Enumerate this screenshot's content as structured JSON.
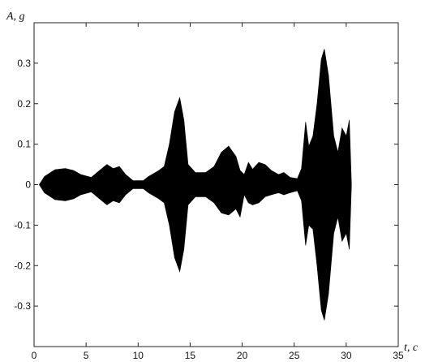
{
  "chart_data": {
    "type": "area",
    "xlabel": "t, c",
    "ylabel": "A, g",
    "xlim": [
      0,
      35
    ],
    "ylim": [
      -0.4,
      0.4
    ],
    "x_ticks": [
      0,
      5,
      10,
      15,
      20,
      25,
      30,
      35
    ],
    "y_ticks": [
      -0.3,
      -0.2,
      -0.1,
      0,
      0.1,
      0.2,
      0.3
    ],
    "y_tick_labels": [
      "-0.3",
      "-0.2",
      "-0.1",
      "0",
      "0.1",
      "0.2",
      "0.3"
    ],
    "grid": false,
    "series": [
      {
        "envelope_upper": [
          [
            0.5,
            0
          ],
          [
            1.0,
            0.02
          ],
          [
            2.0,
            0.037
          ],
          [
            3.0,
            0.04
          ],
          [
            3.8,
            0.035
          ],
          [
            4.5,
            0.025
          ],
          [
            5.5,
            0.018
          ],
          [
            6.3,
            0.035
          ],
          [
            7.0,
            0.05
          ],
          [
            7.6,
            0.04
          ],
          [
            8.2,
            0.045
          ],
          [
            8.8,
            0.025
          ],
          [
            9.5,
            0.01
          ],
          [
            10.5,
            0.01
          ],
          [
            11.0,
            0.02
          ],
          [
            12.0,
            0.035
          ],
          [
            12.5,
            0.045
          ],
          [
            13.0,
            0.1
          ],
          [
            13.5,
            0.18
          ],
          [
            14.0,
            0.215
          ],
          [
            14.4,
            0.16
          ],
          [
            14.8,
            0.05
          ],
          [
            15.5,
            0.03
          ],
          [
            16.5,
            0.03
          ],
          [
            17.3,
            0.045
          ],
          [
            18.0,
            0.08
          ],
          [
            18.7,
            0.095
          ],
          [
            19.4,
            0.07
          ],
          [
            19.8,
            0.035
          ],
          [
            20.2,
            0.025
          ],
          [
            20.6,
            0.055
          ],
          [
            21.0,
            0.038
          ],
          [
            21.6,
            0.055
          ],
          [
            22.2,
            0.05
          ],
          [
            22.8,
            0.035
          ],
          [
            23.5,
            0.025
          ],
          [
            24.0,
            0.03
          ],
          [
            24.6,
            0.018
          ],
          [
            25.3,
            0.015
          ],
          [
            25.7,
            0.04
          ],
          [
            26.1,
            0.155
          ],
          [
            26.4,
            0.095
          ],
          [
            26.8,
            0.12
          ],
          [
            27.2,
            0.2
          ],
          [
            27.6,
            0.31
          ],
          [
            27.9,
            0.335
          ],
          [
            28.3,
            0.27
          ],
          [
            28.8,
            0.12
          ],
          [
            29.2,
            0.08
          ],
          [
            29.6,
            0.14
          ],
          [
            30.0,
            0.12
          ],
          [
            30.3,
            0.16
          ],
          [
            30.5,
            0
          ]
        ],
        "envelope_lower": [
          [
            0.5,
            0
          ],
          [
            1.0,
            -0.02
          ],
          [
            2.0,
            -0.037
          ],
          [
            3.0,
            -0.04
          ],
          [
            3.8,
            -0.035
          ],
          [
            4.5,
            -0.025
          ],
          [
            5.5,
            -0.018
          ],
          [
            6.3,
            -0.035
          ],
          [
            7.0,
            -0.05
          ],
          [
            7.6,
            -0.04
          ],
          [
            8.2,
            -0.045
          ],
          [
            8.8,
            -0.025
          ],
          [
            9.5,
            -0.01
          ],
          [
            10.5,
            -0.01
          ],
          [
            11.0,
            -0.02
          ],
          [
            12.0,
            -0.035
          ],
          [
            12.5,
            -0.045
          ],
          [
            13.0,
            -0.1
          ],
          [
            13.5,
            -0.18
          ],
          [
            14.0,
            -0.215
          ],
          [
            14.4,
            -0.16
          ],
          [
            14.8,
            -0.05
          ],
          [
            15.5,
            -0.03
          ],
          [
            16.5,
            -0.03
          ],
          [
            17.3,
            -0.045
          ],
          [
            18.0,
            -0.07
          ],
          [
            18.7,
            -0.075
          ],
          [
            19.4,
            -0.06
          ],
          [
            19.8,
            -0.08
          ],
          [
            20.2,
            -0.025
          ],
          [
            20.6,
            -0.045
          ],
          [
            21.0,
            -0.05
          ],
          [
            21.6,
            -0.045
          ],
          [
            22.2,
            -0.03
          ],
          [
            22.8,
            -0.025
          ],
          [
            23.5,
            -0.02
          ],
          [
            24.0,
            -0.025
          ],
          [
            24.6,
            -0.02
          ],
          [
            25.3,
            -0.015
          ],
          [
            25.7,
            -0.04
          ],
          [
            26.1,
            -0.15
          ],
          [
            26.4,
            -0.1
          ],
          [
            26.8,
            -0.11
          ],
          [
            27.2,
            -0.2
          ],
          [
            27.6,
            -0.31
          ],
          [
            27.9,
            -0.335
          ],
          [
            28.3,
            -0.27
          ],
          [
            28.8,
            -0.12
          ],
          [
            29.2,
            -0.08
          ],
          [
            29.6,
            -0.14
          ],
          [
            30.0,
            -0.12
          ],
          [
            30.3,
            -0.16
          ],
          [
            30.5,
            0
          ]
        ]
      }
    ]
  }
}
